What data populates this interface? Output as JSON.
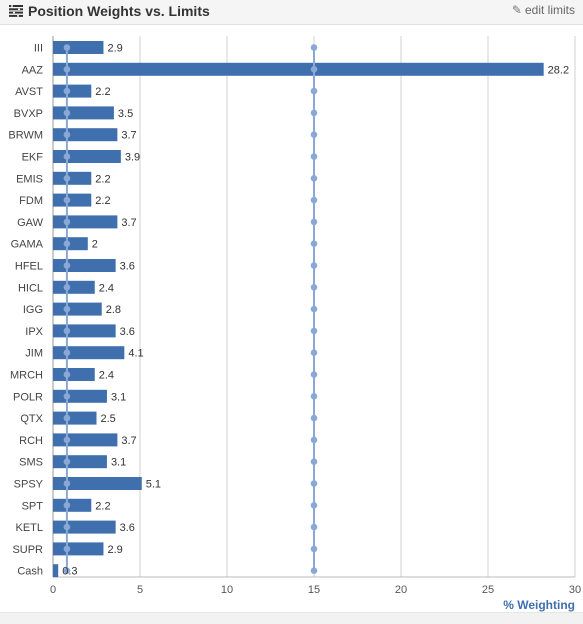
{
  "header": {
    "title": "Position Weights vs. Limits",
    "edit_label": "edit limits",
    "title_icon": "list-icon",
    "edit_icon": "edit-icon"
  },
  "chart_data": {
    "type": "bar",
    "orientation": "horizontal",
    "title": "Position Weights vs. Limits",
    "xlabel": "% Weighting",
    "ylabel": "",
    "xlim": [
      0,
      30
    ],
    "xticks": [
      0,
      5,
      10,
      15,
      20,
      25,
      30
    ],
    "grid": true,
    "categories": [
      "III",
      "AAZ",
      "AVST",
      "BVXP",
      "BRWM",
      "EKF",
      "EMIS",
      "FDM",
      "GAW",
      "GAMA",
      "HFEL",
      "HICL",
      "IGG",
      "IPX",
      "JIM",
      "MRCH",
      "POLR",
      "QTX",
      "RCH",
      "SMS",
      "SPSY",
      "SPT",
      "KETL",
      "SUPR",
      "Cash"
    ],
    "values": [
      2.9,
      28.2,
      2.2,
      3.5,
      3.7,
      3.9,
      2.2,
      2.2,
      3.7,
      2,
      3.6,
      2.4,
      2.8,
      3.6,
      4.1,
      2.4,
      3.1,
      2.5,
      3.7,
      3.1,
      5.1,
      2.2,
      3.6,
      2.9,
      0.3
    ],
    "value_labels": [
      "2.9",
      "28.2",
      "2.2",
      "3.5",
      "3.7",
      "3.9",
      "2.2",
      "2.2",
      "3.7",
      "2",
      "3.6",
      "2.4",
      "2.8",
      "3.6",
      "4.1",
      "2.4",
      "3.1",
      "2.5",
      "3.7",
      "3.1",
      "5.1",
      "2.2",
      "3.6",
      "2.9",
      "0.3"
    ],
    "limits": [
      {
        "value": 0.8
      },
      {
        "value": 15
      }
    ],
    "colors": {
      "bar": "#3f6fad",
      "limit_line": "#8aa8d6",
      "limit_marker": "#8aa8d6",
      "grid": "#d0d0d0",
      "axis_label": "#3f6fad"
    }
  }
}
